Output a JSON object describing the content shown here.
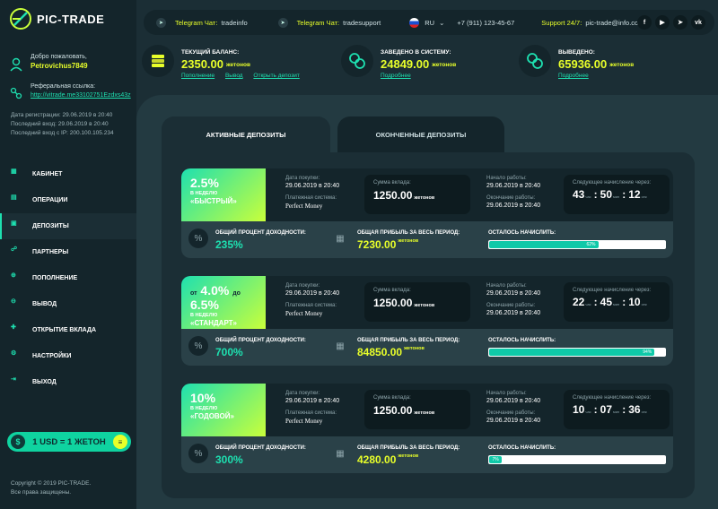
{
  "brand": {
    "name": "PIC-TRADE"
  },
  "sidebar": {
    "welcome_label": "Добро пожаловать,",
    "username": "Petrovichus7849",
    "ref_label": "Реферальная ссылка:",
    "ref_link": "http://vitrade.me33102751Ezdxs43z",
    "reg_date": "Дата регистрации: 29.06.2019 в 20:40",
    "last_login": "Последний вход: 29.06.2019 в 20:40",
    "last_ip": "Последний вход с IP: 200.100.105.234",
    "menu": [
      {
        "label": "КАБИНЕТ",
        "icon": "cabinet-icon"
      },
      {
        "label": "ОПЕРАЦИИ",
        "icon": "operations-icon"
      },
      {
        "label": "ДЕПОЗИТЫ",
        "icon": "deposits-icon"
      },
      {
        "label": "ПАРТНЕРЫ",
        "icon": "partners-icon"
      },
      {
        "label": "ПОПОЛНЕНИЕ",
        "icon": "refill-icon"
      },
      {
        "label": "ВЫВОД",
        "icon": "withdraw-icon"
      },
      {
        "label": "ОТКРЫТИЕ ВКЛАДА",
        "icon": "open-deposit-icon"
      },
      {
        "label": "НАСТРОЙКИ",
        "icon": "settings-icon"
      },
      {
        "label": "ВЫХОД",
        "icon": "logout-icon"
      }
    ],
    "active_index": 2,
    "rate": "1 USD = 1 ЖЕТОН",
    "copyright1": "Copyright © 2019 PIC-TRADE.",
    "copyright2": "Все права защищены."
  },
  "topbar": {
    "tg1_label": "Telegram Чат:",
    "tg1_value": "tradeinfo",
    "tg2_label": "Telegram Чат:",
    "tg2_value": "tradesupport",
    "lang": "RU",
    "phone": "+7 (911) 123-45-67",
    "support_label": "Support 24/7:",
    "support_email": "pic-trade@info.com",
    "socials": [
      "f",
      "▶",
      "➤",
      "vk"
    ]
  },
  "stats": {
    "balance": {
      "label": "ТЕКУЩИЙ БАЛАНС:",
      "value": "2350.00",
      "unit": "жетонов",
      "links": [
        "Пополнение",
        "Вывод",
        "Открыть депозит"
      ]
    },
    "deposited": {
      "label": "ЗАВЕДЕНО В СИСТЕМУ:",
      "value": "24849.00",
      "unit": "жетонов",
      "link": "Подробнее"
    },
    "withdrawn": {
      "label": "ВЫВЕДЕНО:",
      "value": "65936.00",
      "unit": "жетонов",
      "link": "Подробнее"
    }
  },
  "tabs": {
    "active": "АКТИВНЫЕ ДЕПОЗИТЫ",
    "inactive": "ОКОНЧЕННЫЕ ДЕПОЗИТЫ"
  },
  "labels": {
    "purchase_date": "Дата покупки:",
    "payment_system": "Платежная система:",
    "payment_name": "Perfect Money",
    "deposit_sum": "Сумма вклада:",
    "start": "Начало работы:",
    "end": "Окончание работы:",
    "next": "Следующее начисление через:",
    "total_pct": "ОБЩИЙ ПРОЦЕНТ ДОХОДНОСТИ:",
    "total_profit": "ОБЩАЯ ПРИБЫЛЬ ЗА ВЕСЬ ПЕРИОД:",
    "remaining": "ОСТАЛОСЬ НАЧИСЛИТЬ:",
    "per_week": "В НЕДЕЛЮ",
    "unit": "жетонов",
    "h": "час",
    "m": "мин",
    "s": "сек"
  },
  "deposits": [
    {
      "rate": "2.5%",
      "name": "«БЫСТРЫЙ»",
      "date": "29.06.2019 в 20:40",
      "sum": "1250.00",
      "start": "29.06.2019 в 20:40",
      "end": "29.06.2019 в 20:40",
      "hh": "43",
      "mm": "50",
      "ss": "12",
      "pct": "235%",
      "profit": "7230.00",
      "progress": 62,
      "progress_label": "62%"
    },
    {
      "rate_from": "от",
      "rate_a": "4.0%",
      "rate_to": "до",
      "rate_b": "6.5%",
      "name": "«СТАНДАРТ»",
      "date": "29.06.2019 в 20:40",
      "sum": "1250.00",
      "start": "29.06.2019 в 20:40",
      "end": "29.06.2019 в 20:40",
      "hh": "22",
      "mm": "45",
      "ss": "10",
      "pct": "700%",
      "profit": "84850.00",
      "progress": 94,
      "progress_label": "94%"
    },
    {
      "rate": "10%",
      "name": "«ГОДОВОЙ»",
      "date": "29.06.2019 в 20:40",
      "sum": "1250.00",
      "start": "29.06.2019 в 20:40",
      "end": "29.06.2019 в 20:40",
      "hh": "10",
      "mm": "07",
      "ss": "36",
      "pct": "300%",
      "profit": "4280.00",
      "progress": 7,
      "progress_label": "7%"
    }
  ]
}
